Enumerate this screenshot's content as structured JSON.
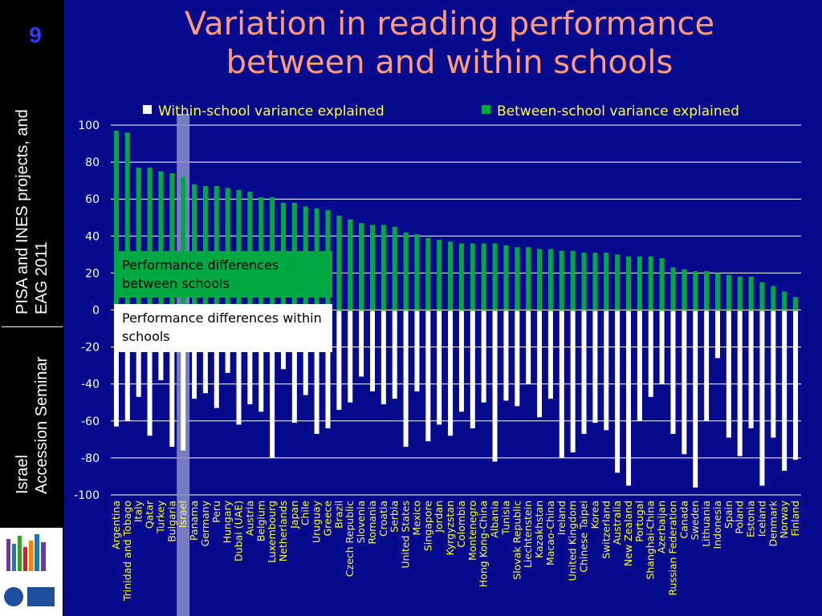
{
  "slide_number": "9",
  "sidebar": {
    "line1": "PISA and INES projects, and\nEAG 2011",
    "line2": "Israel\nAccession Seminar"
  },
  "title": "Variation in reading performance between and within schools",
  "callouts": {
    "between": "Performance differences between schools",
    "within": "Performance differences within schools"
  },
  "colors": {
    "background": "#060a8c",
    "between": "#00a844",
    "within": "#ffffff",
    "title": "#ff9a7a",
    "highlight": "#8c8fc8"
  },
  "chart_data": {
    "type": "bar",
    "legend": [
      {
        "label": "Within-school variance explained",
        "color": "#ffffff"
      },
      {
        "label": "Between-school variance explained",
        "color": "#00a844"
      }
    ],
    "legend_position": "top",
    "ylim": [
      -100,
      100
    ],
    "yticks": [
      100,
      80,
      60,
      40,
      20,
      0,
      -20,
      -40,
      -60,
      -80,
      -100
    ],
    "grid": true,
    "highlight_category": "Israel",
    "categories": [
      "Argentina",
      "Trinidad and Tobago",
      "Italy",
      "Qatar",
      "Turkey",
      "Bulgaria",
      "Israel",
      "Panama",
      "Germany",
      "Peru",
      "Hungary",
      "Dubai (UAE)",
      "Austria",
      "Belgium",
      "Luxembourg",
      "Netherlands",
      "Japan",
      "Chile",
      "Uruguay",
      "Greece",
      "Brazil",
      "Czech Republic",
      "Slovenia",
      "Romania",
      "Croatia",
      "Serbia",
      "United States",
      "Mexico",
      "Singapore",
      "Jordan",
      "Kyrgyzstan",
      "Colombia",
      "Montenegro",
      "Hong Kong-China",
      "Albania",
      "Tunisia",
      "Slovak Republic",
      "Liechtenstein",
      "Kazakhstan",
      "Macao-China",
      "Ireland",
      "United Kingdom",
      "Chinese Taipei",
      "Korea",
      "Switzerland",
      "Australia",
      "New Zealand",
      "Portugal",
      "Shanghai-China",
      "Azerbaijan",
      "Russian Federation",
      "Canada",
      "Sweden",
      "Lithuania",
      "Indonesia",
      "Spain",
      "Poland",
      "Estonia",
      "Iceland",
      "Denmark",
      "Norway",
      "Finland"
    ],
    "series": [
      {
        "name": "Between-school variance explained",
        "values": [
          97,
          96,
          77,
          77,
          75,
          74,
          72,
          68,
          67,
          67,
          66,
          65,
          64,
          61,
          61,
          58,
          58,
          56,
          55,
          54,
          51,
          49,
          47,
          46,
          46,
          45,
          42,
          41,
          39,
          38,
          37,
          36,
          36,
          36,
          36,
          35,
          34,
          34,
          33,
          33,
          32,
          32,
          31,
          31,
          31,
          30,
          29,
          29,
          29,
          28,
          23,
          22,
          21,
          21,
          20,
          19,
          18,
          18,
          15,
          13,
          10,
          7
        ]
      },
      {
        "name": "Within-school variance explained",
        "values": [
          -63,
          -60,
          -47,
          -68,
          -38,
          -74,
          -76,
          -48,
          -45,
          -53,
          -34,
          -62,
          -51,
          -55,
          -80,
          -32,
          -61,
          -46,
          -67,
          -64,
          -54,
          -50,
          -36,
          -44,
          -51,
          -48,
          -74,
          -44,
          -71,
          -62,
          -68,
          -55,
          -64,
          -50,
          -82,
          -49,
          -52,
          -40,
          -58,
          -48,
          -80,
          -77,
          -67,
          -61,
          -65,
          -88,
          -95,
          -60,
          -47,
          -40,
          -67,
          -78,
          -96,
          -60,
          -26,
          -69,
          -79,
          -64,
          -95,
          -69,
          -87,
          -81
        ]
      }
    ]
  }
}
